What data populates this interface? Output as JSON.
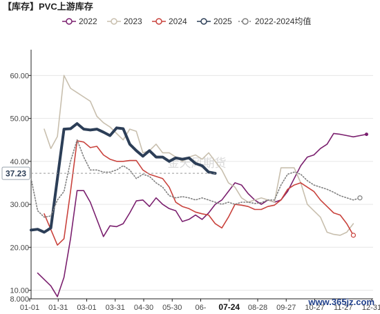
{
  "colors": {
    "2022": "#7a1f6e",
    "2023": "#c8bfae",
    "2024": "#c9423c",
    "2025": "#2c3e57",
    "avg": "#7f7f7f",
    "axis": "#222222",
    "grid": "#e6e6e6"
  },
  "chart_data": {
    "type": "line",
    "title": "【库存】PVC上游库存",
    "watermark": "金天风期货",
    "site_watermark": "www.365jz.com",
    "x_ticks": [
      "01-01",
      "01-31",
      "03-01",
      "03-31",
      "04-30",
      "05-30",
      "06-",
      "07-24",
      "08-28",
      "09-27",
      "10-27",
      "11-27",
      "12-31"
    ],
    "highlight": {
      "x": "07-24",
      "y_label": "37.23"
    },
    "y_ticks": [
      "8.000",
      "10.00",
      "20.00",
      "30.00",
      "40.00",
      "50.00",
      "60.00"
    ],
    "y_tick_values": [
      8,
      10,
      20,
      30,
      40,
      50,
      60
    ],
    "ylim": [
      8,
      66
    ],
    "xlim": [
      0,
      52
    ],
    "legend": [
      "2022",
      "2023",
      "2024",
      "2025",
      "2022-2024均值"
    ],
    "series": [
      {
        "name": "2022",
        "key": "2022",
        "style": "solid",
        "values": [
          [
            1,
            14
          ],
          [
            3,
            11
          ],
          [
            4,
            8.5
          ],
          [
            5,
            13
          ],
          [
            6,
            22
          ],
          [
            7,
            33.2
          ],
          [
            8,
            33.2
          ],
          [
            9,
            30.5
          ],
          [
            10,
            26.5
          ],
          [
            11,
            22.5
          ],
          [
            12,
            25
          ],
          [
            13,
            24.8
          ],
          [
            14,
            25.5
          ],
          [
            15,
            28
          ],
          [
            16,
            30.8
          ],
          [
            17,
            31
          ],
          [
            18,
            29.5
          ],
          [
            19,
            31.5
          ],
          [
            20,
            30
          ],
          [
            21,
            29
          ],
          [
            22,
            28.5
          ],
          [
            23,
            26
          ],
          [
            24,
            26.5
          ],
          [
            25,
            27.5
          ],
          [
            26,
            26.5
          ],
          [
            27,
            28
          ],
          [
            28,
            30
          ],
          [
            29,
            31
          ],
          [
            30,
            33
          ],
          [
            31,
            35
          ],
          [
            32,
            34.5
          ],
          [
            33,
            32.5
          ],
          [
            34,
            31
          ],
          [
            35,
            30
          ],
          [
            36,
            31
          ],
          [
            37,
            30.5
          ],
          [
            38,
            31
          ],
          [
            39,
            33
          ],
          [
            40,
            36
          ],
          [
            41,
            39
          ],
          [
            42,
            41
          ],
          [
            43,
            41.5
          ],
          [
            44,
            43
          ],
          [
            45,
            44
          ],
          [
            46,
            46.5
          ],
          [
            47,
            46.3
          ],
          [
            49,
            45.7
          ],
          [
            51,
            46.3
          ]
        ]
      },
      {
        "name": "2023",
        "key": "2023",
        "style": "solid",
        "values": [
          [
            2,
            47.5
          ],
          [
            3,
            43
          ],
          [
            4,
            45.8
          ],
          [
            5,
            60
          ],
          [
            6,
            57
          ],
          [
            7,
            56
          ],
          [
            8,
            55
          ],
          [
            9,
            54
          ],
          [
            10,
            50.5
          ],
          [
            11,
            49
          ],
          [
            12,
            48
          ],
          [
            13,
            46.5
          ],
          [
            14,
            45
          ],
          [
            15,
            47.5
          ],
          [
            16,
            47
          ],
          [
            17,
            42
          ],
          [
            18,
            42.5
          ],
          [
            19,
            44
          ],
          [
            20,
            42
          ],
          [
            21,
            42
          ],
          [
            22,
            41
          ],
          [
            23,
            40
          ],
          [
            24,
            41
          ],
          [
            25,
            41.5
          ],
          [
            26,
            40.5
          ],
          [
            27,
            42
          ],
          [
            28,
            40
          ],
          [
            29,
            38
          ],
          [
            30,
            35
          ],
          [
            31,
            34
          ],
          [
            32,
            31.5
          ],
          [
            33,
            30.5
          ],
          [
            34,
            31
          ],
          [
            35,
            31.5
          ],
          [
            36,
            31
          ],
          [
            37,
            30.5
          ],
          [
            38,
            38.5
          ],
          [
            39,
            38.5
          ],
          [
            40,
            38.5
          ],
          [
            41,
            35
          ],
          [
            42,
            30
          ],
          [
            43,
            28.5
          ],
          [
            44,
            27
          ],
          [
            45,
            23.5
          ],
          [
            46,
            23
          ],
          [
            47,
            22.8
          ],
          [
            48,
            23.5
          ],
          [
            49,
            25.5
          ]
        ]
      },
      {
        "name": "2024",
        "key": "2024",
        "style": "solid",
        "values": [
          [
            2,
            27.8
          ],
          [
            4,
            20.5
          ],
          [
            5,
            22
          ],
          [
            6,
            33
          ],
          [
            7,
            44.8
          ],
          [
            8,
            44.5
          ],
          [
            9,
            43.2
          ],
          [
            10,
            43.5
          ],
          [
            11,
            41.5
          ],
          [
            12,
            40.5
          ],
          [
            13,
            40
          ],
          [
            14,
            40
          ],
          [
            15,
            40.2
          ],
          [
            16,
            40.2
          ],
          [
            17,
            38
          ],
          [
            18,
            37
          ],
          [
            19,
            36.5
          ],
          [
            20,
            36
          ],
          [
            21,
            34
          ],
          [
            22,
            30.5
          ],
          [
            23,
            29.5
          ],
          [
            24,
            29
          ],
          [
            25,
            28.2
          ],
          [
            26,
            27.8
          ],
          [
            27,
            27.5
          ],
          [
            28,
            25.5
          ],
          [
            29,
            24.5
          ],
          [
            30,
            27
          ],
          [
            31,
            30
          ],
          [
            32,
            29.8
          ],
          [
            33,
            29.5
          ],
          [
            34,
            28.8
          ],
          [
            35,
            28.8
          ],
          [
            36,
            29.5
          ],
          [
            37,
            29.8
          ],
          [
            38,
            31
          ],
          [
            39,
            33.5
          ],
          [
            40,
            34.5
          ],
          [
            41,
            35
          ],
          [
            42,
            34
          ],
          [
            43,
            33
          ],
          [
            44,
            31
          ],
          [
            45,
            29.5
          ],
          [
            46,
            28
          ],
          [
            47,
            27.5
          ],
          [
            48,
            25.5
          ],
          [
            49,
            22.8
          ]
        ]
      },
      {
        "name": "2025",
        "key": "2025",
        "style": "thick",
        "values": [
          [
            0,
            24
          ],
          [
            1,
            24.2
          ],
          [
            2,
            23.5
          ],
          [
            3,
            24.5
          ],
          [
            4,
            36
          ],
          [
            5,
            47.5
          ],
          [
            6,
            47.6
          ],
          [
            7,
            48.8
          ],
          [
            8,
            47.5
          ],
          [
            9,
            47.3
          ],
          [
            10,
            47.5
          ],
          [
            11,
            46.8
          ],
          [
            12,
            46
          ],
          [
            13,
            47.8
          ],
          [
            14,
            47.6
          ],
          [
            15,
            44
          ],
          [
            16,
            42.5
          ],
          [
            17,
            41.2
          ],
          [
            18,
            42.5
          ],
          [
            19,
            41
          ],
          [
            20,
            41
          ],
          [
            21,
            40
          ],
          [
            22,
            40.8
          ],
          [
            23,
            40.5
          ],
          [
            24,
            40.8
          ],
          [
            25,
            39.5
          ],
          [
            26,
            39
          ],
          [
            27,
            37.5
          ],
          [
            28,
            37.23
          ]
        ]
      },
      {
        "name": "2022-2024均值",
        "key": "avg",
        "style": "dotted",
        "values": [
          [
            0,
            36
          ],
          [
            1,
            28.5
          ],
          [
            2,
            27
          ],
          [
            3,
            27.3
          ],
          [
            4,
            31
          ],
          [
            5,
            33
          ],
          [
            6,
            40
          ],
          [
            7,
            45
          ],
          [
            8,
            41
          ],
          [
            9,
            38
          ],
          [
            10,
            38
          ],
          [
            11,
            37.5
          ],
          [
            12,
            37.5
          ],
          [
            13,
            38
          ],
          [
            14,
            39
          ],
          [
            15,
            38
          ],
          [
            16,
            36
          ],
          [
            17,
            37
          ],
          [
            18,
            36.5
          ],
          [
            19,
            35
          ],
          [
            20,
            34
          ],
          [
            21,
            32
          ],
          [
            22,
            31.5
          ],
          [
            23,
            31.8
          ],
          [
            24,
            31.5
          ],
          [
            25,
            31
          ],
          [
            26,
            31.5
          ],
          [
            27,
            31
          ],
          [
            28,
            30.5
          ],
          [
            29,
            30
          ],
          [
            30,
            30.5
          ],
          [
            31,
            30
          ],
          [
            32,
            30.5
          ],
          [
            33,
            30.5
          ],
          [
            34,
            30.2
          ],
          [
            35,
            30.4
          ],
          [
            36,
            31
          ],
          [
            37,
            31
          ],
          [
            38,
            34.5
          ],
          [
            39,
            37
          ],
          [
            40,
            37.5
          ],
          [
            41,
            37
          ],
          [
            42,
            35.5
          ],
          [
            43,
            34.5
          ],
          [
            44,
            34
          ],
          [
            45,
            33.5
          ],
          [
            46,
            32.8
          ],
          [
            47,
            32
          ],
          [
            48,
            31.5
          ],
          [
            49,
            31
          ],
          [
            50,
            31.5
          ]
        ]
      }
    ]
  }
}
